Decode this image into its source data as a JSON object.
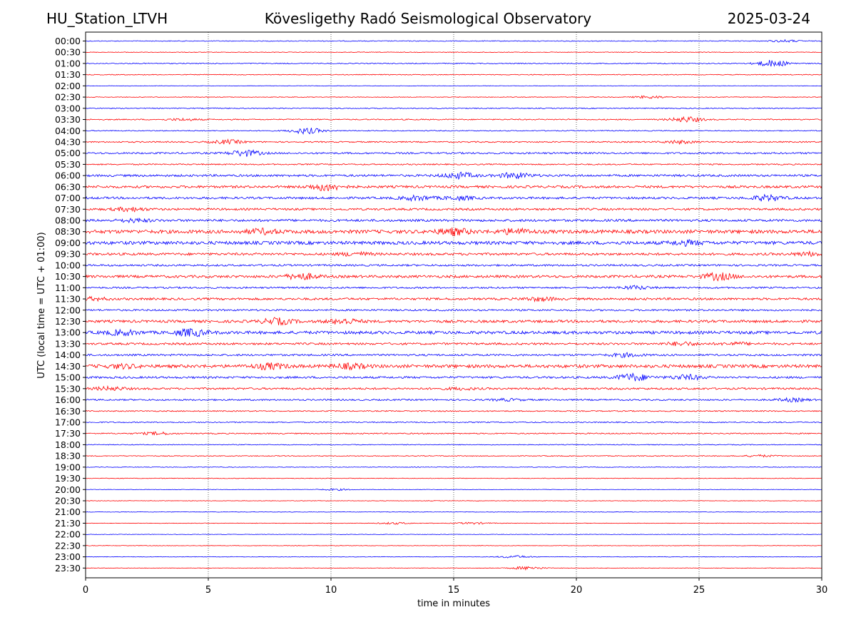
{
  "header": {
    "station": "HU_Station_LTVH",
    "title": "Kövesligethy Radó Seismological Observatory",
    "date": "2025-03-24"
  },
  "chart_data": {
    "type": "line",
    "title": "Kövesligethy Radó Seismological Observatory",
    "xlabel": "time in minutes",
    "ylabel": "UTC (local time = UTC + 01:00)",
    "xlim": [
      0,
      30
    ],
    "x_ticks": [
      "0",
      "5",
      "10",
      "15",
      "20",
      "25",
      "30"
    ],
    "grid": "vertical dotted at x ticks",
    "row_colors": [
      "#0000ff",
      "#ff0000"
    ],
    "rows": [
      {
        "label": "00:00",
        "level": 0.25,
        "bursts": [
          [
            28.5,
            0.6
          ]
        ]
      },
      {
        "label": "00:30",
        "level": 0.2,
        "bursts": []
      },
      {
        "label": "01:00",
        "level": 0.3,
        "bursts": [
          [
            28.0,
            2.0
          ]
        ]
      },
      {
        "label": "01:30",
        "level": 0.25,
        "bursts": []
      },
      {
        "label": "02:00",
        "level": 0.15,
        "bursts": []
      },
      {
        "label": "02:30",
        "level": 0.2,
        "bursts": [
          [
            23.0,
            0.8
          ]
        ]
      },
      {
        "label": "03:00",
        "level": 0.3,
        "bursts": []
      },
      {
        "label": "03:30",
        "level": 0.35,
        "bursts": [
          [
            24.5,
            1.6
          ],
          [
            4.0,
            0.6
          ]
        ]
      },
      {
        "label": "04:00",
        "level": 0.3,
        "bursts": [
          [
            9.0,
            1.8
          ]
        ]
      },
      {
        "label": "04:30",
        "level": 0.4,
        "bursts": [
          [
            5.8,
            1.2
          ],
          [
            24.2,
            0.9
          ]
        ]
      },
      {
        "label": "05:00",
        "level": 0.55,
        "bursts": [
          [
            6.5,
            1.8
          ]
        ]
      },
      {
        "label": "05:30",
        "level": 0.4,
        "bursts": []
      },
      {
        "label": "06:00",
        "level": 0.7,
        "bursts": [
          [
            15.2,
            1.7
          ],
          [
            17.5,
            1.6
          ]
        ]
      },
      {
        "label": "06:30",
        "level": 0.75,
        "bursts": [
          [
            9.8,
            2.2
          ]
        ]
      },
      {
        "label": "07:00",
        "level": 0.7,
        "bursts": [
          [
            13.5,
            1.3
          ],
          [
            15.2,
            1.0
          ],
          [
            27.8,
            1.7
          ]
        ]
      },
      {
        "label": "07:30",
        "level": 0.65,
        "bursts": [
          [
            1.8,
            1.1
          ]
        ]
      },
      {
        "label": "08:00",
        "level": 0.75,
        "bursts": [
          [
            2.0,
            0.9
          ]
        ]
      },
      {
        "label": "08:30",
        "level": 1.1,
        "bursts": [
          [
            7.2,
            1.3
          ],
          [
            15.0,
            1.8
          ],
          [
            17.5,
            1.4
          ]
        ]
      },
      {
        "label": "09:00",
        "level": 1.05,
        "bursts": [
          [
            24.5,
            1.2
          ]
        ]
      },
      {
        "label": "09:30",
        "level": 0.75,
        "bursts": [
          [
            11.0,
            1.0
          ],
          [
            29.5,
            1.0
          ]
        ]
      },
      {
        "label": "10:00",
        "level": 0.6,
        "bursts": []
      },
      {
        "label": "10:30",
        "level": 0.8,
        "bursts": [
          [
            8.8,
            1.8
          ],
          [
            25.8,
            2.0
          ]
        ]
      },
      {
        "label": "11:00",
        "level": 0.55,
        "bursts": [
          [
            22.4,
            1.0
          ]
        ]
      },
      {
        "label": "11:30",
        "level": 0.7,
        "bursts": [
          [
            0.3,
            0.8
          ],
          [
            18.5,
            1.0
          ]
        ]
      },
      {
        "label": "12:00",
        "level": 0.55,
        "bursts": []
      },
      {
        "label": "12:30",
        "level": 0.8,
        "bursts": [
          [
            7.8,
            1.8
          ],
          [
            10.5,
            1.6
          ]
        ]
      },
      {
        "label": "13:00",
        "level": 0.95,
        "bursts": [
          [
            1.5,
            1.4
          ],
          [
            4.3,
            2.0
          ]
        ]
      },
      {
        "label": "13:30",
        "level": 0.65,
        "bursts": [
          [
            24.3,
            1.0
          ],
          [
            26.5,
            0.7
          ]
        ]
      },
      {
        "label": "14:00",
        "level": 0.6,
        "bursts": [
          [
            22.0,
            1.0
          ]
        ]
      },
      {
        "label": "14:30",
        "level": 1.0,
        "bursts": [
          [
            7.5,
            1.6
          ],
          [
            10.8,
            1.3
          ],
          [
            1.5,
            1.0
          ]
        ]
      },
      {
        "label": "15:00",
        "level": 0.65,
        "bursts": [
          [
            22.3,
            2.2
          ],
          [
            24.5,
            1.4
          ]
        ]
      },
      {
        "label": "15:30",
        "level": 0.6,
        "bursts": [
          [
            15.3,
            0.6
          ],
          [
            1.0,
            1.0
          ]
        ]
      },
      {
        "label": "16:00",
        "level": 0.5,
        "bursts": [
          [
            17.2,
            0.6
          ],
          [
            28.8,
            0.9
          ]
        ]
      },
      {
        "label": "16:30",
        "level": 0.35,
        "bursts": []
      },
      {
        "label": "17:00",
        "level": 0.35,
        "bursts": []
      },
      {
        "label": "17:30",
        "level": 0.35,
        "bursts": [
          [
            2.9,
            0.8
          ]
        ]
      },
      {
        "label": "18:00",
        "level": 0.25,
        "bursts": []
      },
      {
        "label": "18:30",
        "level": 0.25,
        "bursts": [
          [
            27.5,
            0.6
          ]
        ]
      },
      {
        "label": "19:00",
        "level": 0.2,
        "bursts": []
      },
      {
        "label": "19:30",
        "level": 0.2,
        "bursts": []
      },
      {
        "label": "20:00",
        "level": 0.15,
        "bursts": [
          [
            10.2,
            0.5
          ]
        ]
      },
      {
        "label": "20:30",
        "level": 0.15,
        "bursts": []
      },
      {
        "label": "21:00",
        "level": 0.15,
        "bursts": []
      },
      {
        "label": "21:30",
        "level": 0.15,
        "bursts": [
          [
            12.6,
            0.6
          ],
          [
            15.8,
            0.6
          ]
        ]
      },
      {
        "label": "22:00",
        "level": 0.15,
        "bursts": []
      },
      {
        "label": "22:30",
        "level": 0.15,
        "bursts": []
      },
      {
        "label": "23:00",
        "level": 0.15,
        "bursts": [
          [
            17.5,
            0.8
          ]
        ]
      },
      {
        "label": "23:30",
        "level": 0.15,
        "bursts": [
          [
            18.0,
            1.0
          ]
        ]
      }
    ]
  }
}
